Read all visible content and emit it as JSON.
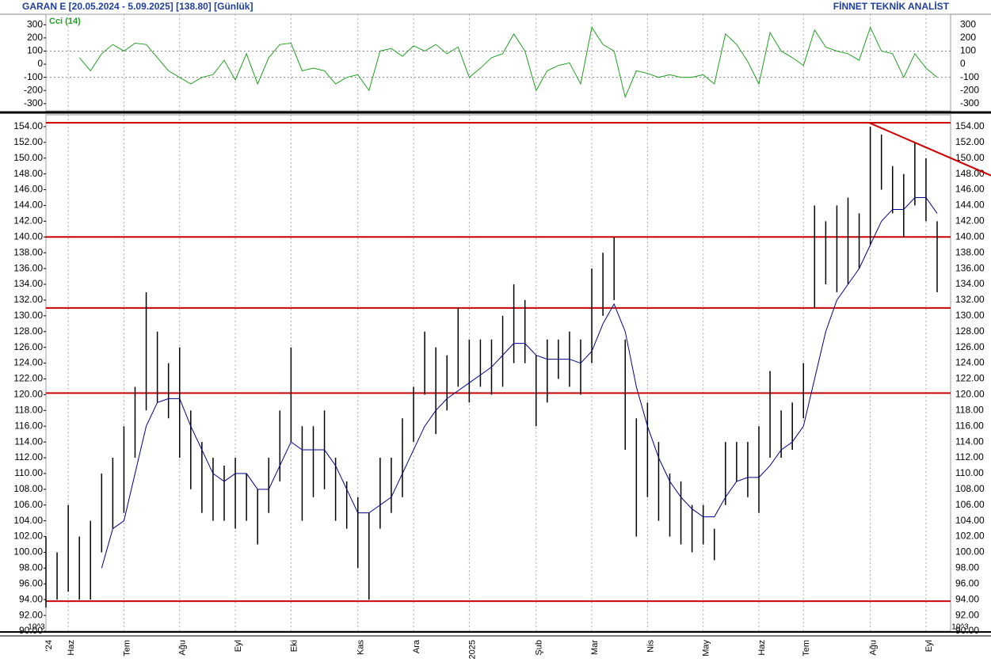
{
  "chart_data": [
    {
      "type": "ohlc",
      "title": "GARAN E  [20.05.2024 - 5.09.2025]  [138.80]  [Günlük]",
      "subtitle": "FİNNET TEKNİK ANALİST",
      "categories": [
        "'24",
        null,
        "Haz",
        null,
        null,
        null,
        null,
        "Tem",
        null,
        null,
        null,
        null,
        "Ağu",
        null,
        null,
        null,
        null,
        "Eyl",
        null,
        null,
        null,
        null,
        "Eki",
        null,
        null,
        null,
        null,
        null,
        "Kas",
        null,
        null,
        null,
        null,
        "Ara",
        null,
        null,
        null,
        null,
        "2025",
        null,
        null,
        null,
        null,
        null,
        "Şub",
        null,
        null,
        null,
        null,
        "Mar",
        null,
        null,
        null,
        null,
        "Nis",
        null,
        null,
        null,
        null,
        "May",
        null,
        null,
        null,
        null,
        "Haz",
        null,
        null,
        null,
        "Tem",
        null,
        null,
        null,
        null,
        null,
        "Ağu",
        null,
        null,
        null,
        null,
        "Eyl",
        null
      ],
      "highs": [
        102,
        100,
        106,
        102,
        104,
        110,
        112,
        116,
        121,
        133,
        128,
        124,
        126,
        118,
        114,
        112,
        111,
        112,
        110,
        108,
        112,
        118,
        126,
        116,
        116,
        118,
        112,
        109,
        107,
        105,
        112,
        112,
        117,
        121,
        128,
        126,
        125,
        131,
        127,
        127,
        127,
        130,
        134,
        132,
        125,
        127,
        127,
        128,
        127,
        136,
        138,
        140,
        127,
        117,
        119,
        114,
        110,
        109,
        106,
        106,
        103,
        114,
        114,
        114,
        116,
        123,
        118,
        119,
        124,
        144,
        142,
        144,
        145,
        143,
        154,
        153,
        149,
        148,
        152,
        150,
        142
      ],
      "lows": [
        93,
        94,
        95,
        94,
        94,
        100,
        103,
        105,
        112,
        118,
        119,
        117,
        112,
        108,
        105,
        104,
        104,
        103,
        104,
        101,
        105,
        109,
        114,
        104,
        107,
        108,
        104,
        103,
        98,
        94,
        103,
        105,
        107,
        114,
        120,
        115,
        118,
        121,
        119,
        121,
        120,
        121,
        124,
        124,
        116,
        119,
        122,
        121,
        120,
        124,
        130,
        132,
        113,
        102,
        107,
        104,
        102,
        101,
        100,
        101,
        99,
        106,
        109,
        107,
        105,
        112,
        112,
        113,
        117,
        131,
        134,
        133,
        134,
        136,
        139,
        146,
        143,
        140,
        144,
        142,
        133
      ],
      "color": "#000000",
      "ma": {
        "color": "#00008b",
        "values": [
          null,
          null,
          null,
          null,
          null,
          98,
          103,
          104,
          110,
          116,
          119,
          119.5,
          119.5,
          116,
          113,
          110,
          109,
          110,
          110,
          108,
          108,
          111,
          114,
          113,
          113,
          113,
          111,
          108,
          105,
          105,
          106,
          107,
          110,
          113,
          116,
          118,
          119.5,
          120.5,
          121.5,
          122.5,
          123.5,
          125,
          126.5,
          126.5,
          125,
          124.5,
          124.5,
          124.5,
          124,
          125.5,
          129,
          131.5,
          128,
          121,
          116,
          112,
          109,
          107,
          105.5,
          104.5,
          104.5,
          107,
          109,
          109.5,
          109.5,
          111,
          113,
          114,
          116,
          122,
          128,
          132,
          134,
          136,
          139,
          142,
          143.5,
          143.5,
          145,
          145,
          143
        ]
      },
      "hlines": {
        "color": "#cc0000",
        "values": [
          154.5,
          140,
          131,
          120.2,
          93.8
        ]
      },
      "trendline": {
        "color": "#cc0000",
        "values": [
          154.5,
          147.8
        ]
      },
      "scale_label": "10^3",
      "grid": "x",
      "ylim": [
        90,
        155.5
      ],
      "yticks": [
        {
          "value": 154,
          "label": "154.00"
        },
        {
          "value": 152,
          "label": "152.00"
        },
        {
          "value": 150,
          "label": "150.00"
        },
        {
          "value": 148,
          "label": "148.00"
        },
        {
          "value": 146,
          "label": "146.00"
        },
        {
          "value": 144,
          "label": "144.00"
        },
        {
          "value": 142,
          "label": "142.00"
        },
        {
          "value": 140,
          "label": "140.00"
        },
        {
          "value": 138,
          "label": "138.00"
        },
        {
          "value": 136,
          "label": "136.00"
        },
        {
          "value": 134,
          "label": "134.00"
        },
        {
          "value": 132,
          "label": "132.00"
        },
        {
          "value": 130,
          "label": "130.00"
        },
        {
          "value": 128,
          "label": "128.00"
        },
        {
          "value": 126,
          "label": "126.00"
        },
        {
          "value": 124,
          "label": "124.00"
        },
        {
          "value": 122,
          "label": "122.00"
        },
        {
          "value": 120,
          "label": "120.00"
        },
        {
          "value": 118,
          "label": "118.00"
        },
        {
          "value": 116,
          "label": "116.00"
        },
        {
          "value": 114,
          "label": "114.00"
        },
        {
          "value": 112,
          "label": "112.00"
        },
        {
          "value": 110,
          "label": "110.00"
        },
        {
          "value": 108,
          "label": "108.00"
        },
        {
          "value": 106,
          "label": "106.00"
        },
        {
          "value": 104,
          "label": "104.00"
        },
        {
          "value": 102,
          "label": "102.00"
        },
        {
          "value": 100,
          "label": "100.00"
        },
        {
          "value": 98,
          "label": "98.00"
        },
        {
          "value": 96,
          "label": "96.00"
        },
        {
          "value": 94,
          "label": "94.00"
        },
        {
          "value": 92,
          "label": "92.00"
        },
        {
          "value": 90,
          "label": "90.00"
        }
      ]
    },
    {
      "type": "line",
      "title": "Cci (14)",
      "color": "#22a022",
      "values": [
        null,
        null,
        null,
        50,
        -50,
        80,
        150,
        100,
        160,
        150,
        50,
        -50,
        -100,
        -150,
        -100,
        -80,
        30,
        -120,
        80,
        -150,
        50,
        150,
        160,
        -50,
        -30,
        -50,
        -150,
        -100,
        -80,
        -200,
        100,
        120,
        60,
        140,
        100,
        150,
        80,
        130,
        -100,
        -30,
        50,
        80,
        230,
        100,
        -200,
        -50,
        -10,
        10,
        -150,
        280,
        150,
        100,
        -250,
        -50,
        -70,
        -100,
        -80,
        -100,
        -100,
        -80,
        -150,
        230,
        150,
        20,
        -150,
        240,
        100,
        50,
        -10,
        260,
        130,
        100,
        80,
        30,
        280,
        100,
        80,
        -100,
        80,
        -30,
        -100
      ],
      "ref_lines": [
        100,
        -100
      ],
      "ylim": [
        -355,
        380
      ],
      "yticks": [
        300,
        200,
        100,
        0,
        -100,
        -200,
        -300
      ]
    }
  ]
}
